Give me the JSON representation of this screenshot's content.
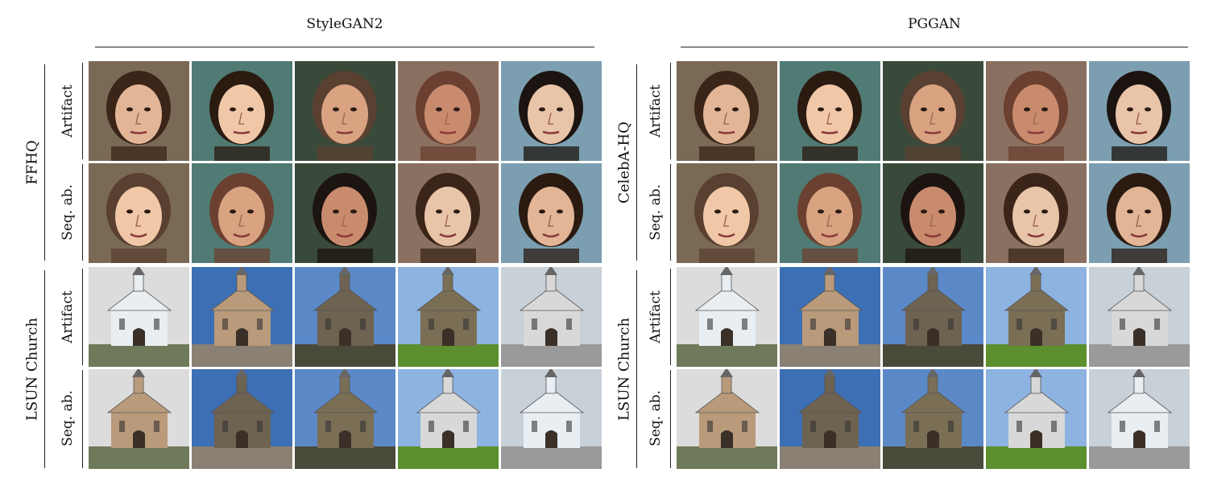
{
  "panels": [
    {
      "title": "StyleGAN2",
      "sections": [
        {
          "dataset": "FFHQ",
          "kind": "face",
          "rows": [
            "Artifact",
            "Seq. ab."
          ]
        },
        {
          "dataset": "LSUN Church",
          "kind": "church",
          "rows": [
            "Artifact",
            "Seq. ab."
          ]
        }
      ]
    },
    {
      "title": "PGGAN",
      "sections": [
        {
          "dataset": "CelebA-HQ",
          "kind": "face",
          "rows": [
            "Artifact",
            "Seq. ab."
          ]
        },
        {
          "dataset": "LSUN Church",
          "kind": "church",
          "rows": [
            "Artifact",
            "Seq. ab."
          ]
        }
      ]
    }
  ],
  "palettes": {
    "face_bg": [
      "#7a6a55",
      "#4f7b74",
      "#3a4a3a",
      "#8a7060",
      "#7b9fb0"
    ],
    "skin": [
      "#e2b597",
      "#f0c8a8",
      "#d9a382",
      "#c98b6e",
      "#e8c4a8"
    ],
    "hair": [
      "#3a2518",
      "#2a1a10",
      "#5a4030",
      "#6b4030",
      "#1c1410"
    ],
    "sky": [
      "#dcdcdc",
      "#3d6fb5",
      "#5b89c8",
      "#8db3e0",
      "#c8d0d8"
    ],
    "building": [
      "#e8eef2",
      "#b99a7a",
      "#6e6250",
      "#7a6e55",
      "#d8d8d8"
    ],
    "ground": [
      "#6e7a5a",
      "#8a8074",
      "#4a4a3a",
      "#5c8f2e",
      "#9a9a9a"
    ]
  }
}
